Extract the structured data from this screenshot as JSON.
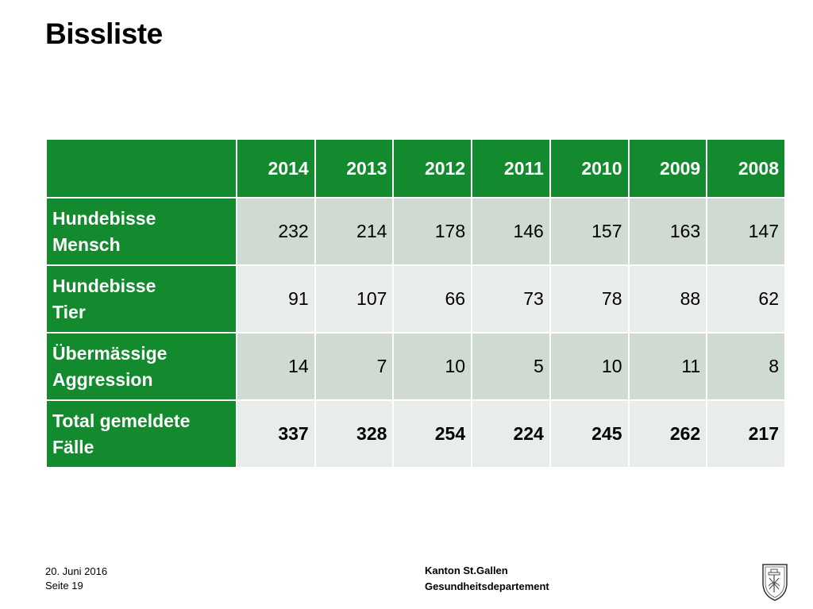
{
  "title": "Bissliste",
  "table": {
    "years": [
      "2014",
      "2013",
      "2012",
      "2011",
      "2010",
      "2009",
      "2008"
    ],
    "rows": [
      {
        "label": [
          "Hundebisse",
          "Mensch"
        ],
        "values": [
          "232",
          "214",
          "178",
          "146",
          "157",
          "163",
          "147"
        ]
      },
      {
        "label": [
          "Hundebisse",
          "Tier"
        ],
        "values": [
          "91",
          "107",
          "66",
          "73",
          "78",
          "88",
          "62"
        ]
      },
      {
        "label": [
          "Übermässige",
          "Aggression"
        ],
        "values": [
          "14",
          "7",
          "10",
          "5",
          "10",
          "11",
          "8"
        ]
      },
      {
        "label": [
          "Total gemeldete",
          "Fälle"
        ],
        "values": [
          "337",
          "328",
          "254",
          "224",
          "245",
          "262",
          "217"
        ]
      }
    ]
  },
  "footer": {
    "date": "20. Juni 2016",
    "page": "Seite 19",
    "org": "Kanton St.Gallen",
    "department": "Gesundheitsdepartement"
  },
  "colors": {
    "header_green": "#138a2e",
    "row_dark": "#cfdad1",
    "row_light": "#e8edea"
  },
  "icons": {
    "logo": "coat-of-arms-st-gallen-icon"
  }
}
